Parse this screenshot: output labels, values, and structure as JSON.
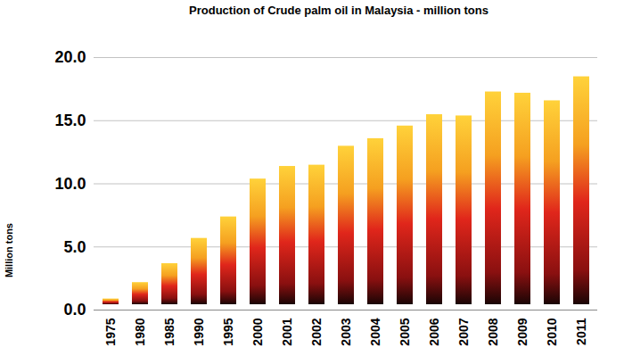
{
  "chart_data": {
    "type": "bar",
    "title": "Production of Crude palm oil in Malaysia - million tons",
    "y_label": "Million tons",
    "categories": [
      "1975",
      "1980",
      "1985",
      "1990",
      "1995",
      "2000",
      "2001",
      "2002",
      "2003",
      "2004",
      "2005",
      "2006",
      "2007",
      "2008",
      "2009",
      "2010",
      "2011"
    ],
    "values": [
      1.3,
      2.6,
      4.1,
      6.1,
      7.8,
      10.8,
      11.8,
      11.9,
      13.4,
      14.0,
      15.0,
      15.9,
      15.8,
      17.7,
      17.6,
      17.0,
      18.9
    ],
    "color": "#e0261b",
    "ylim": [
      0,
      20
    ],
    "yticks": [
      {
        "value": 0,
        "label": "0.0"
      },
      {
        "value": 5,
        "label": "5.0"
      },
      {
        "value": 10,
        "label": "10.0"
      },
      {
        "value": 15,
        "label": "15.0"
      },
      {
        "value": 20,
        "label": "20.0"
      }
    ],
    "grid": true
  }
}
